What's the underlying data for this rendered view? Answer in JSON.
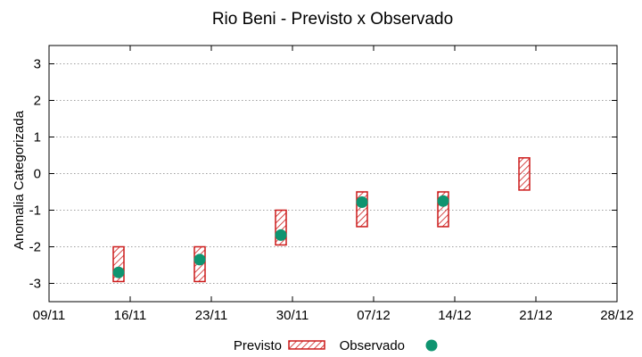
{
  "chart_data": {
    "type": "range-bar-with-points",
    "title": "Rio Beni - Previsto x Observado",
    "xlabel": "",
    "ylabel": "Anomalia Categorizada",
    "x_ticks": [
      "09/11",
      "16/11",
      "23/11",
      "30/11",
      "07/12",
      "14/12",
      "21/12",
      "28/12"
    ],
    "x_range_days": [
      0,
      49
    ],
    "ylim": [
      -3.5,
      3.5
    ],
    "y_ticks": [
      -3,
      -2,
      -1,
      0,
      1,
      2,
      3
    ],
    "grid": "horizontal dotted",
    "legend_position": "bottom",
    "series": [
      {
        "name": "Previsto",
        "style": "hatched-box",
        "color": "#cc1a1a",
        "ranges": [
          {
            "x_day": 6,
            "low": -2.95,
            "high": -2.0
          },
          {
            "x_day": 13,
            "low": -2.95,
            "high": -2.0
          },
          {
            "x_day": 20,
            "low": -1.95,
            "high": -1.0
          },
          {
            "x_day": 27,
            "low": -1.45,
            "high": -0.5
          },
          {
            "x_day": 34,
            "low": -1.45,
            "high": -0.5
          },
          {
            "x_day": 41,
            "low": -0.45,
            "high": 0.43
          }
        ]
      },
      {
        "name": "Observado",
        "style": "point",
        "color": "#0f9470",
        "points": [
          {
            "x_day": 6,
            "y": -2.7
          },
          {
            "x_day": 13,
            "y": -2.35
          },
          {
            "x_day": 20,
            "y": -1.68
          },
          {
            "x_day": 27,
            "y": -0.78
          },
          {
            "x_day": 34,
            "y": -0.75
          }
        ]
      }
    ]
  }
}
